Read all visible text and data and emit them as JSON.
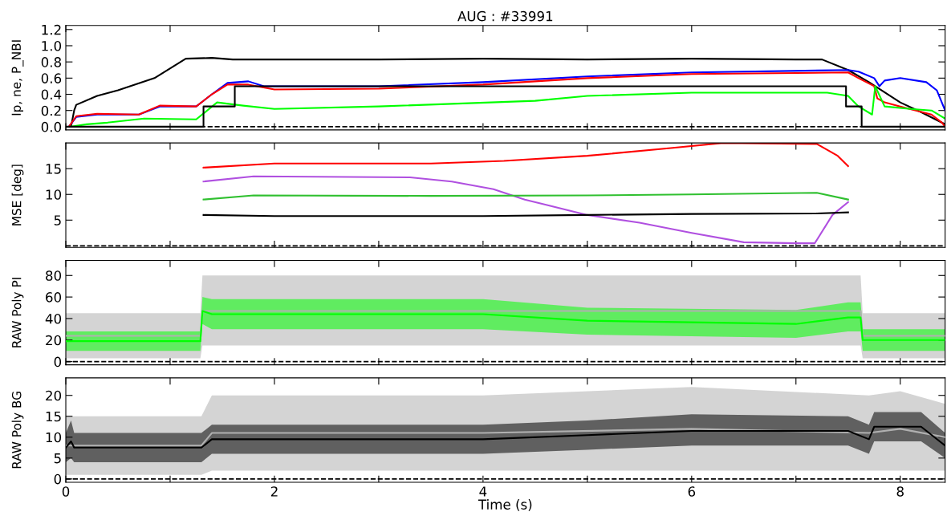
{
  "chart_data": [
    {
      "type": "line",
      "title": "AUG : #33991",
      "ylabel": "Ip, ne, P_NBI",
      "xlim": [
        0,
        8.43
      ],
      "ylim": [
        -0.04,
        1.25
      ],
      "tick_labels": "y",
      "xticks": [
        {
          "value": 0,
          "label": null
        },
        {
          "value": 1,
          "label": null
        },
        {
          "value": 2,
          "label": null
        },
        {
          "value": 3,
          "label": null
        },
        {
          "value": 4,
          "label": null
        },
        {
          "value": 5,
          "label": null
        },
        {
          "value": 6,
          "label": null
        },
        {
          "value": 7,
          "label": null
        },
        {
          "value": 8,
          "label": null
        }
      ],
      "yticks": [
        {
          "value": 0,
          "label": "0.0"
        },
        {
          "value": 0.2,
          "label": "0.2"
        },
        {
          "value": 0.4,
          "label": "0.4"
        },
        {
          "value": 0.6,
          "label": "0.6"
        },
        {
          "value": 0.8,
          "label": "0.8"
        },
        {
          "value": 1.0,
          "label": "1.0"
        },
        {
          "value": 1.2,
          "label": "1.2"
        }
      ],
      "ref_lines": [
        {
          "axis": "y",
          "value": 0,
          "color": "#000000",
          "line_style": "dashed"
        }
      ],
      "series": [
        {
          "color": "#000000",
          "x": [
            0.05,
            0.08,
            0.1,
            0.3,
            0.5,
            0.85,
            1.15,
            1.4,
            1.6,
            2.0,
            3.0,
            4.0,
            5.0,
            6.0,
            7.0,
            7.25,
            7.5,
            7.7,
            8.0,
            8.2,
            8.43
          ],
          "values": [
            0.0,
            0.2,
            0.27,
            0.38,
            0.45,
            0.6,
            0.84,
            0.85,
            0.83,
            0.83,
            0.83,
            0.84,
            0.83,
            0.84,
            0.83,
            0.83,
            0.7,
            0.55,
            0.3,
            0.18,
            0.03
          ]
        },
        {
          "color": "#0000ff",
          "x": [
            0.03,
            0.1,
            0.3,
            0.7,
            0.9,
            1.25,
            1.4,
            1.55,
            1.75,
            1.9,
            3.0,
            4.0,
            5.0,
            6.0,
            7.5,
            7.6,
            7.75,
            7.8,
            7.85,
            8.0,
            8.25,
            8.35,
            8.43
          ],
          "values": [
            0.0,
            0.12,
            0.15,
            0.15,
            0.25,
            0.25,
            0.4,
            0.54,
            0.56,
            0.5,
            0.5,
            0.55,
            0.62,
            0.67,
            0.7,
            0.68,
            0.6,
            0.5,
            0.57,
            0.6,
            0.55,
            0.45,
            0.2
          ]
        },
        {
          "color": "#ff0000",
          "x": [
            0.03,
            0.1,
            0.3,
            0.7,
            0.9,
            1.25,
            1.4,
            1.55,
            1.75,
            2.0,
            3.0,
            4.0,
            5.0,
            6.0,
            7.5,
            7.6,
            7.75,
            7.78,
            7.85,
            8.0,
            8.3,
            8.4,
            8.43
          ],
          "values": [
            0.0,
            0.13,
            0.16,
            0.15,
            0.26,
            0.25,
            0.4,
            0.52,
            0.52,
            0.46,
            0.47,
            0.52,
            0.6,
            0.65,
            0.67,
            0.6,
            0.5,
            0.35,
            0.3,
            0.25,
            0.15,
            0.05,
            0.0
          ]
        },
        {
          "color": "#00ff00",
          "x": [
            0.05,
            0.2,
            0.4,
            0.75,
            1.25,
            1.45,
            1.7,
            2.0,
            3.0,
            4.5,
            5.0,
            6.0,
            7.3,
            7.5,
            7.6,
            7.73,
            7.76,
            7.85,
            8.1,
            8.3,
            8.43
          ],
          "values": [
            0.0,
            0.03,
            0.05,
            0.1,
            0.09,
            0.3,
            0.26,
            0.22,
            0.25,
            0.32,
            0.38,
            0.42,
            0.42,
            0.38,
            0.25,
            0.15,
            0.5,
            0.25,
            0.22,
            0.2,
            0.1
          ]
        },
        {
          "type": "step",
          "color": "#000000",
          "x": [
            0,
            1.32,
            1.62,
            7.48,
            7.63,
            8.43
          ],
          "values": [
            0,
            0.25,
            0.5,
            0.25,
            0,
            0
          ]
        }
      ]
    },
    {
      "type": "line",
      "ylabel": "MSE [deg]",
      "xlim": [
        0,
        8.43
      ],
      "ylim": [
        -0.3,
        20
      ],
      "tick_labels": "y",
      "xticks": [
        {
          "value": 0,
          "label": null
        },
        {
          "value": 1,
          "label": null
        },
        {
          "value": 2,
          "label": null
        },
        {
          "value": 3,
          "label": null
        },
        {
          "value": 4,
          "label": null
        },
        {
          "value": 5,
          "label": null
        },
        {
          "value": 6,
          "label": null
        },
        {
          "value": 7,
          "label": null
        },
        {
          "value": 8,
          "label": null
        }
      ],
      "yticks": [
        5,
        10,
        15
      ],
      "ref_lines": [
        {
          "axis": "y",
          "value": 0,
          "color": "#000000",
          "line_style": "dashed"
        }
      ],
      "series": [
        {
          "color": "#ff0000",
          "x": [
            1.32,
            2.0,
            3.5,
            4.2,
            5.0,
            5.8,
            6.3,
            7.2,
            7.4,
            7.5
          ],
          "values": [
            15.2,
            16,
            16,
            16.5,
            17.5,
            19,
            20,
            19.8,
            17.5,
            15.5
          ]
        },
        {
          "color": "#b050e0",
          "x": [
            1.32,
            1.8,
            3.3,
            3.7,
            4.1,
            4.4,
            5.0,
            5.5,
            6.0,
            6.5,
            7.0,
            7.18,
            7.35,
            7.5
          ],
          "values": [
            12.5,
            13.5,
            13.3,
            12.5,
            11,
            9,
            6,
            4.5,
            2.5,
            0.7,
            0.5,
            0.5,
            6,
            8.5
          ]
        },
        {
          "color": "#30c030",
          "x": [
            1.32,
            1.8,
            3.5,
            5.0,
            6.0,
            7.2,
            7.5
          ],
          "values": [
            9,
            9.8,
            9.7,
            9.8,
            10,
            10.3,
            9
          ]
        },
        {
          "color": "#000000",
          "x": [
            1.32,
            2.0,
            4.0,
            5.0,
            6.0,
            7.2,
            7.5
          ],
          "values": [
            6,
            5.8,
            5.8,
            6,
            6.2,
            6.3,
            6.5
          ]
        }
      ]
    },
    {
      "type": "line",
      "ylabel": "RAW Poly PI",
      "xlim": [
        0,
        8.43
      ],
      "ylim": [
        -3,
        94
      ],
      "tick_labels": "y",
      "xticks": [
        {
          "value": 0,
          "label": null
        },
        {
          "value": 1,
          "label": null
        },
        {
          "value": 2,
          "label": null
        },
        {
          "value": 3,
          "label": null
        },
        {
          "value": 4,
          "label": null
        },
        {
          "value": 5,
          "label": null
        },
        {
          "value": 6,
          "label": null
        },
        {
          "value": 7,
          "label": null
        },
        {
          "value": 8,
          "label": null
        }
      ],
      "yticks": [
        0,
        20,
        40,
        60,
        80
      ],
      "ref_lines": [
        {
          "axis": "y",
          "value": 0,
          "color": "#000000",
          "line_style": "dashed"
        }
      ],
      "series": [
        {
          "color": "#b0b0b0",
          "x": [
            0,
            1.29,
            1.31,
            4.0,
            7.62,
            7.64,
            8.43
          ],
          "values": [
            24,
            24,
            47,
            47,
            47,
            24,
            24
          ],
          "lower": [
            3,
            3,
            15,
            15,
            15,
            3,
            3
          ],
          "upper": [
            45,
            45,
            80,
            80,
            80,
            45,
            45
          ]
        },
        {
          "color": "#00ff00",
          "x": [
            0,
            1.29,
            1.31,
            1.4,
            4.0,
            5.0,
            7.0,
            7.5,
            7.62,
            7.64,
            8.43
          ],
          "values": [
            19,
            19,
            47,
            44,
            44,
            38,
            35,
            41,
            41,
            20,
            20
          ],
          "lower": [
            10,
            10,
            35,
            30,
            30,
            25,
            22,
            28,
            28,
            10,
            10
          ],
          "upper": [
            28,
            28,
            60,
            58,
            58,
            50,
            48,
            55,
            55,
            30,
            30
          ]
        }
      ]
    },
    {
      "type": "line",
      "ylabel": "RAW Poly BG",
      "xlabel": "Time (s)",
      "xlim": [
        0,
        8.43
      ],
      "ylim": [
        -0.8,
        24.2
      ],
      "xticks": [
        0,
        2,
        4,
        6,
        8,
        {
          "value": 1,
          "label": null
        },
        {
          "value": 3,
          "label": null
        },
        {
          "value": 5,
          "label": null
        },
        {
          "value": 7,
          "label": null
        }
      ],
      "yticks": [
        0,
        5,
        10,
        15,
        20
      ],
      "ref_lines": [
        {
          "axis": "y",
          "value": 0,
          "color": "#000000",
          "line_style": "dashed"
        }
      ],
      "series": [
        {
          "color": "#b0b0b0",
          "x": [
            0,
            1.3,
            1.4,
            4.0,
            6.0,
            7.7,
            8.0,
            8.43
          ],
          "values": [
            8,
            8,
            11,
            11,
            12,
            11,
            12,
            10
          ],
          "lower": [
            1,
            1,
            2,
            2,
            2,
            2,
            2,
            2
          ],
          "upper": [
            15,
            15,
            20,
            20,
            22,
            20,
            21,
            18
          ]
        },
        {
          "color": "#000000",
          "x": [
            0,
            0.05,
            0.08,
            1.3,
            1.4,
            4.0,
            5.0,
            6.0,
            7.5,
            7.7,
            7.75,
            8.2,
            8.43
          ],
          "values": [
            7.5,
            9,
            7.5,
            7.5,
            9.5,
            9.5,
            10.5,
            11.5,
            11.5,
            9.5,
            12.5,
            12.5,
            8
          ],
          "lower": [
            4,
            5,
            4,
            4,
            6,
            6,
            7,
            8,
            8,
            6,
            9,
            9,
            5
          ],
          "upper": [
            11,
            14,
            11,
            11,
            13,
            13,
            14,
            15.5,
            15,
            13,
            16,
            16,
            11
          ]
        }
      ]
    }
  ]
}
